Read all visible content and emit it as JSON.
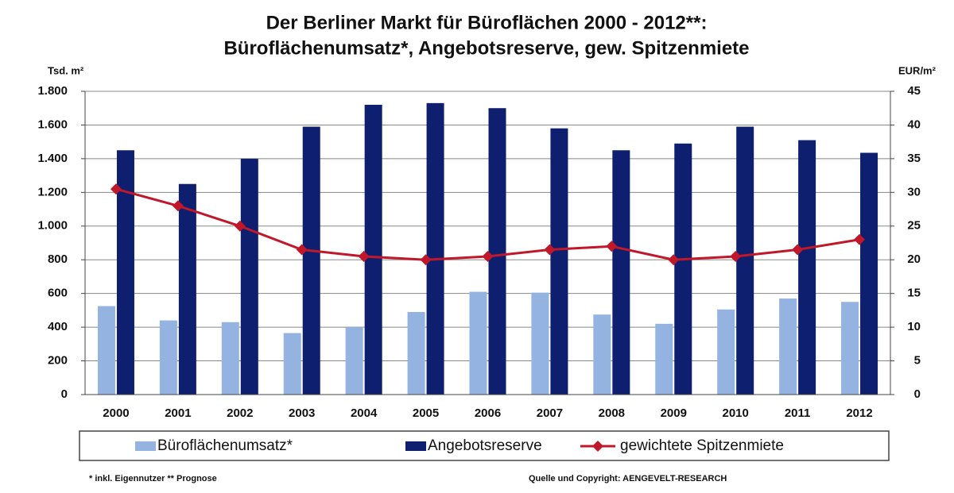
{
  "chart_data": {
    "type": "bar",
    "title": "Der Berliner Markt für Büroflächen 2000 - 2012**:",
    "subtitle": "Büroflächenumsatz*, Angebotsreserve, gew. Spitzenmiete",
    "y_label": "Tsd. m²",
    "y2_label": "EUR/m²",
    "categories": [
      "2000",
      "2001",
      "2002",
      "2003",
      "2004",
      "2005",
      "2006",
      "2007",
      "2008",
      "2009",
      "2010",
      "2011",
      "2012"
    ],
    "series": [
      {
        "name": "Büroflächenumsatz*",
        "color": "#95b3e0",
        "type": "bar",
        "values": [
          525,
          440,
          430,
          365,
          400,
          490,
          610,
          605,
          475,
          420,
          505,
          570,
          550
        ]
      },
      {
        "name": "Angebotsreserve",
        "color": "#0d1f6e",
        "type": "bar",
        "values": [
          1450,
          1250,
          1400,
          1590,
          1720,
          1730,
          1700,
          1580,
          1450,
          1490,
          1590,
          1510,
          1435
        ]
      },
      {
        "name": "gewichtete Spitzenmiete",
        "color": "#c0182a",
        "type": "line",
        "axis": "y2",
        "values": [
          30.5,
          28,
          25,
          21.5,
          20.5,
          20,
          20.5,
          21.5,
          22,
          20,
          20.5,
          21.5,
          23
        ]
      }
    ],
    "ylim": [
      0,
      1800
    ],
    "yticks": [
      0,
      200,
      400,
      600,
      800,
      {
        "value": 1000,
        "label": "1.000"
      },
      {
        "value": 1200,
        "label": "1.200"
      },
      {
        "value": 1400,
        "label": "1.400"
      },
      {
        "value": 1600,
        "label": "1.600"
      },
      {
        "value": 1800,
        "label": "1.800"
      }
    ],
    "y2lim": [
      0,
      45
    ],
    "y2ticks": [
      0,
      5,
      10,
      15,
      20,
      25,
      30,
      35,
      40,
      45
    ],
    "footnote": "* inkl. Eigennutzer   ** Prognose",
    "source": "Quelle und Copyright: AENGEVELT-RESEARCH"
  }
}
